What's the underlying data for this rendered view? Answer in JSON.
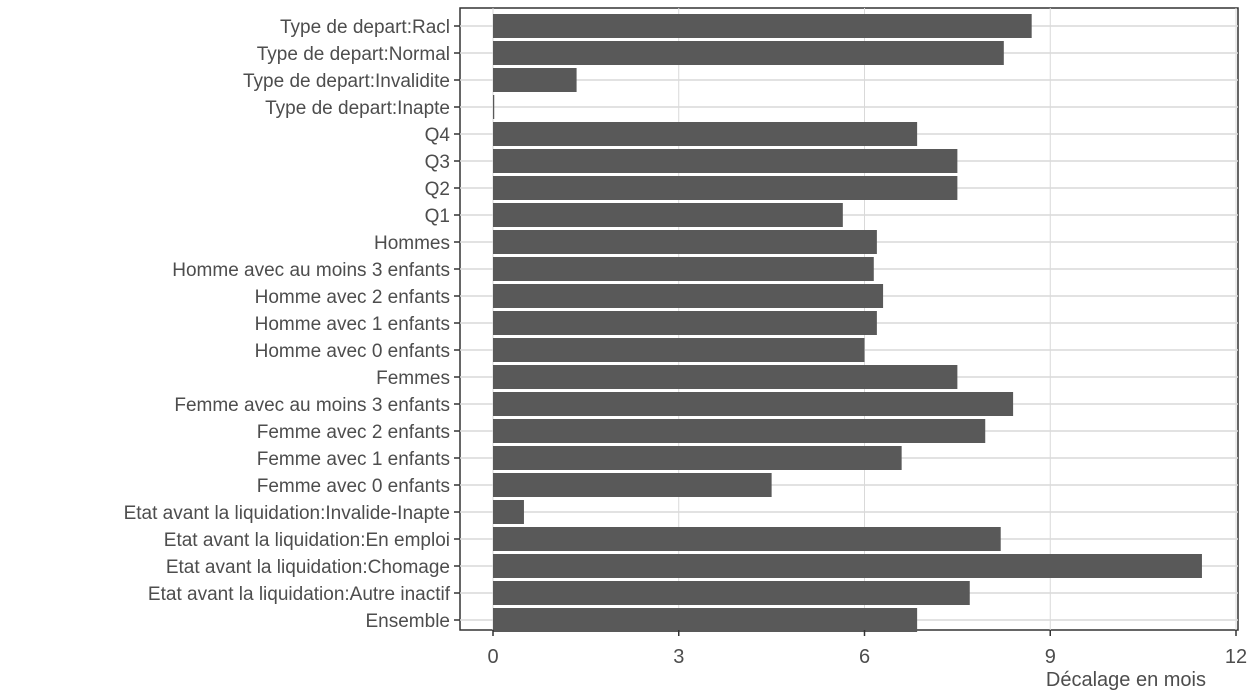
{
  "chart_data": {
    "type": "bar",
    "orientation": "horizontal",
    "title": "",
    "xlabel": "Décalage en mois",
    "ylabel": "",
    "categories": [
      "Type de depart:Racl",
      "Type de depart:Normal",
      "Type de depart:Invalidite",
      "Type de depart:Inapte",
      "Q4",
      "Q3",
      "Q2",
      "Q1",
      "Hommes",
      "Homme avec au moins 3 enfants",
      "Homme avec 2 enfants",
      "Homme avec 1 enfants",
      "Homme avec 0 enfants",
      "Femmes",
      "Femme avec au moins 3 enfants",
      "Femme avec 2 enfants",
      "Femme avec 1 enfants",
      "Femme avec 0 enfants",
      "Etat avant la liquidation:Invalide-Inapte",
      "Etat avant la liquidation:En emploi",
      "Etat avant la liquidation:Chomage",
      "Etat avant la liquidation:Autre inactif",
      "Ensemble"
    ],
    "values": [
      8.7,
      8.25,
      1.35,
      0.02,
      6.85,
      7.5,
      7.5,
      5.65,
      6.2,
      6.15,
      6.3,
      6.2,
      6.0,
      7.5,
      8.4,
      7.95,
      6.6,
      4.5,
      0.5,
      8.2,
      11.45,
      7.7,
      6.85
    ],
    "xlim": [
      0,
      12
    ],
    "xticks": [
      0,
      3,
      6,
      9,
      12
    ],
    "xtick_labels": [
      "0",
      "3",
      "6",
      "9",
      "12"
    ],
    "grid": true,
    "bar_color": "#595959",
    "gridline_color": "#d9d9d9",
    "axis_color": "#333333",
    "text_color": "#4d4d4d"
  }
}
